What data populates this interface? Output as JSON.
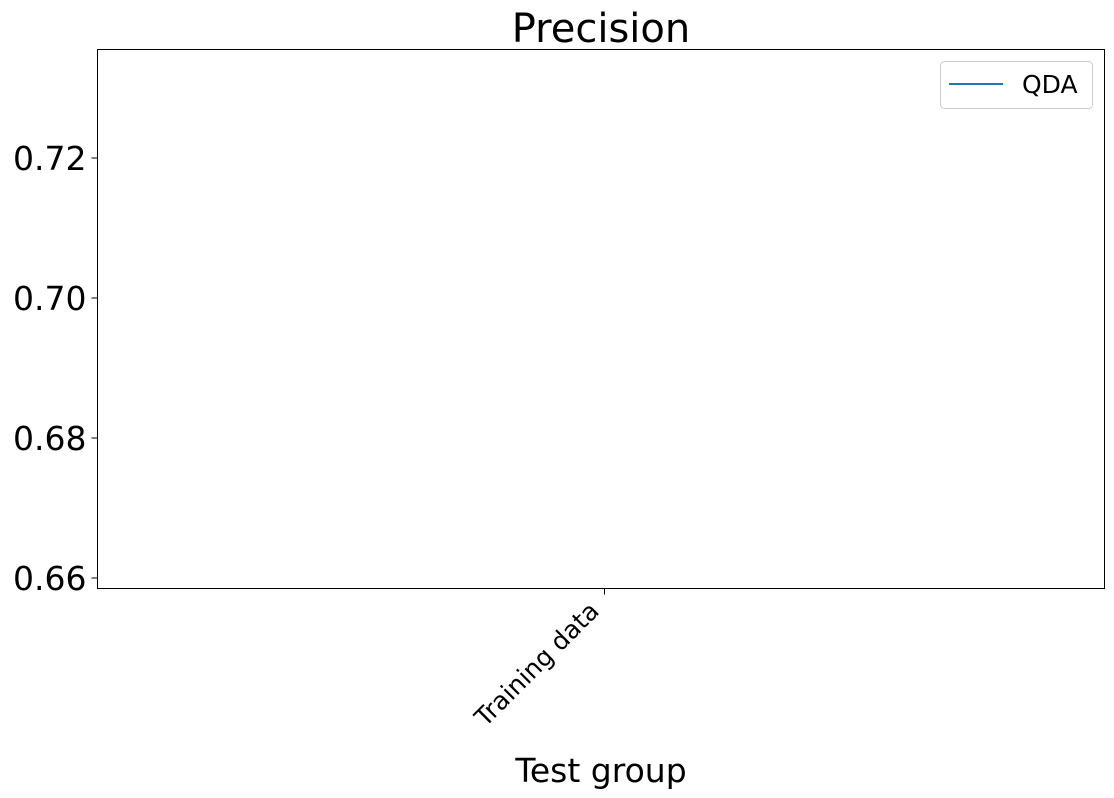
{
  "chart_data": {
    "type": "line",
    "title": "Precision",
    "xlabel": "Test group",
    "ylabel": "",
    "categories": [
      "Training data"
    ],
    "series": [
      {
        "name": "QDA",
        "values": [
          null
        ],
        "color": "#1f77b4"
      }
    ],
    "ylim": [
      0.6585,
      0.7355
    ],
    "yticks": [
      0.66,
      0.68,
      0.7,
      0.72
    ],
    "ytick_labels": [
      "0.66",
      "0.68",
      "0.70",
      "0.72"
    ],
    "grid": false,
    "legend_position": "top-right"
  }
}
